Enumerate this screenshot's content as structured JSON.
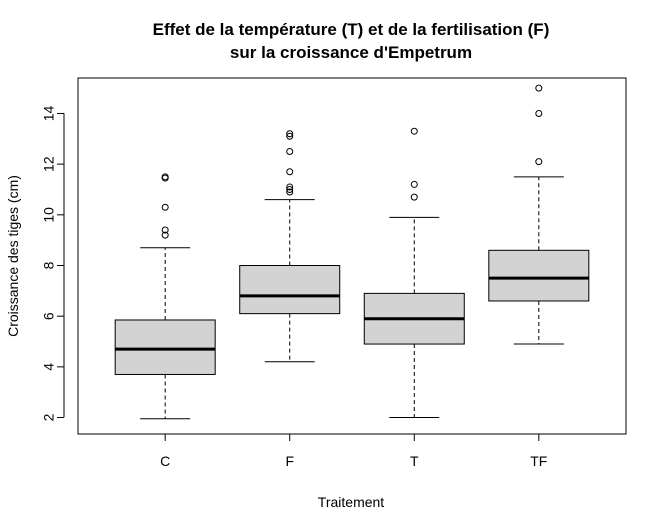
{
  "chart_data": {
    "type": "boxplot",
    "title_line1": "Effet de la température (T) et de la fertilisation (F)",
    "title_line2": "sur la croissance d'Empetrum",
    "xlabel": "Traitement",
    "ylabel": "Croissance des tiges (cm)",
    "ylim": [
      1.35,
      15.4
    ],
    "yticks": [
      2,
      4,
      6,
      8,
      10,
      12,
      14
    ],
    "box_fill": "#d3d3d3",
    "groups": [
      {
        "name": "C",
        "whisker_low": 1.95,
        "q1": 3.7,
        "median": 4.7,
        "q3": 5.85,
        "whisker_high": 8.7,
        "outliers": [
          9.2,
          9.4,
          10.3,
          11.45,
          11.5
        ]
      },
      {
        "name": "F",
        "whisker_low": 4.2,
        "q1": 6.1,
        "median": 6.8,
        "q3": 8.0,
        "whisker_high": 10.6,
        "outliers": [
          10.9,
          11.0,
          11.1,
          11.7,
          12.5,
          13.1,
          13.2
        ]
      },
      {
        "name": "T",
        "whisker_low": 2.0,
        "q1": 4.9,
        "median": 5.9,
        "q3": 6.9,
        "whisker_high": 9.9,
        "outliers": [
          10.7,
          11.2,
          13.3
        ]
      },
      {
        "name": "TF",
        "whisker_low": 4.9,
        "q1": 6.6,
        "median": 7.5,
        "q3": 8.6,
        "whisker_high": 11.5,
        "outliers": [
          12.1,
          14.0,
          15.0
        ]
      }
    ]
  }
}
